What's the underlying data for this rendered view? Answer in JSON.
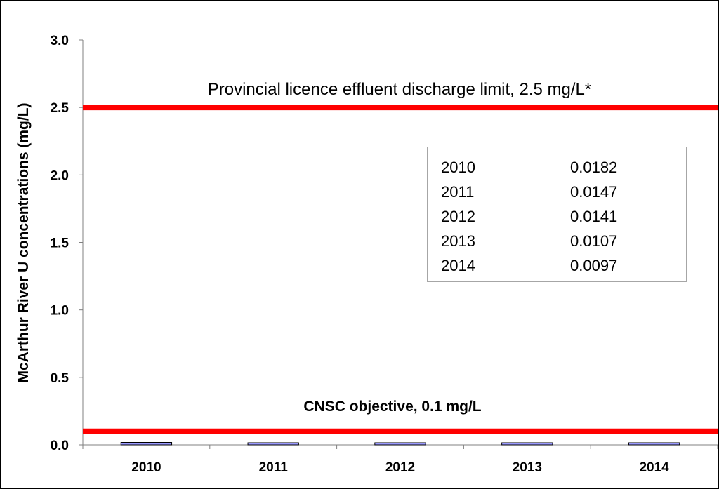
{
  "chart_data": {
    "type": "bar",
    "title": "",
    "xlabel": "",
    "ylabel": "McArthur River U concentrations (mg/L)",
    "categories": [
      "2010",
      "2011",
      "2012",
      "2013",
      "2014"
    ],
    "series": [
      {
        "values": [
          0.0182,
          0.0147,
          0.0141,
          0.0107,
          0.0097
        ]
      }
    ],
    "ylim": [
      0,
      3.0
    ],
    "yticks": [
      "0.0",
      "0.5",
      "1.0",
      "1.5",
      "2.0",
      "2.5",
      "3.0"
    ],
    "grid": false,
    "reference_lines": [
      {
        "value": 2.5,
        "label": "Provincial licence effluent discharge limit, 2.5 mg/L*",
        "color": "#ff0000"
      },
      {
        "value": 0.1,
        "label": "CNSC objective, 0.1 mg/L",
        "color": "#ff0000"
      }
    ],
    "inset_table": [
      {
        "year": "2010",
        "value": "0.0182"
      },
      {
        "year": "2011",
        "value": "0.0147"
      },
      {
        "year": "2012",
        "value": "0.0141"
      },
      {
        "year": "2013",
        "value": "0.0107"
      },
      {
        "year": "2014",
        "value": "0.0097"
      }
    ],
    "bar_color": "#9999ff",
    "bar_edge_color": "#000000"
  }
}
